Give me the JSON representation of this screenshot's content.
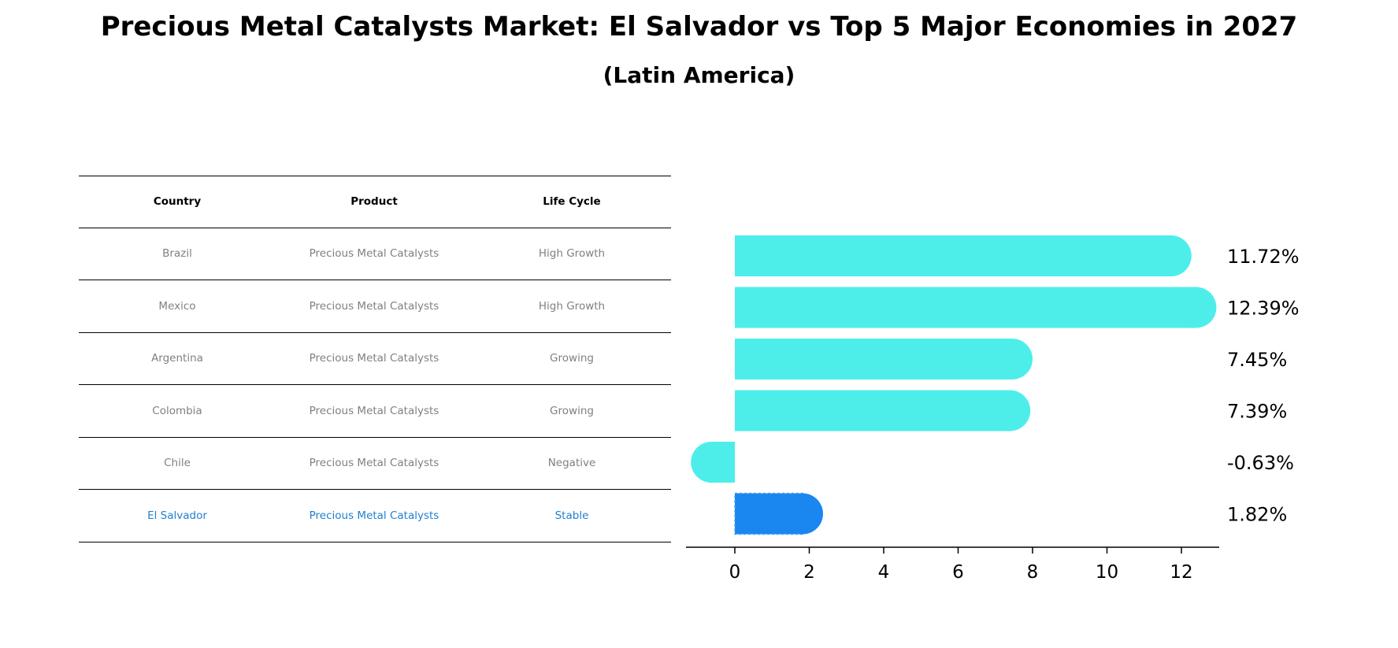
{
  "title": "Precious Metal Catalysts Market: El Salvador vs Top 5 Major Economies in 2027",
  "subtitle": "(Latin America)",
  "table": {
    "headers": [
      "Country",
      "Product",
      "Life Cycle"
    ],
    "rows": [
      [
        "Brazil",
        "Precious Metal Catalysts",
        "High Growth"
      ],
      [
        "Mexico",
        "Precious Metal Catalysts",
        "High Growth"
      ],
      [
        "Argentina",
        "Precious Metal Catalysts",
        "Growing"
      ],
      [
        "Colombia",
        "Precious Metal Catalysts",
        "Growing"
      ],
      [
        "Chile",
        "Precious Metal Catalysts",
        "Negative"
      ],
      [
        "El Salvador",
        "Precious Metal Catalysts",
        "Stable"
      ]
    ]
  },
  "chart_data": {
    "type": "bar",
    "orientation": "horizontal",
    "categories": [
      "Brazil",
      "Mexico",
      "Argentina",
      "Colombia",
      "Chile",
      "El Salvador"
    ],
    "values": [
      11.72,
      12.39,
      7.45,
      7.39,
      -0.63,
      1.82
    ],
    "value_labels": [
      "11.72%",
      "12.39%",
      "7.45%",
      "7.39%",
      "-0.63%",
      "1.82%"
    ],
    "xticks": [
      0,
      2,
      4,
      6,
      8,
      10,
      12
    ],
    "xlim": [
      -1.3,
      13.1
    ],
    "colors": {
      "default": "#4deeea",
      "highlight": "#1a86f0"
    },
    "highlight_index": 5
  }
}
